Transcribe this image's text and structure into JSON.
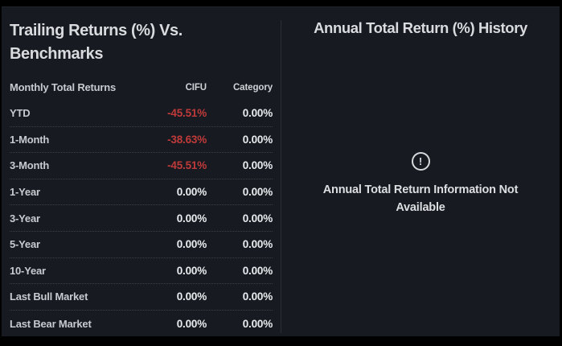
{
  "left_panel": {
    "title": "Trailing Returns (%) Vs. Benchmarks",
    "table": {
      "headers": {
        "label": "Monthly Total Returns",
        "col1": "CIFU",
        "col2": "Category"
      },
      "rows": [
        {
          "label": "YTD",
          "cifu": "-45.51%",
          "category": "0.00%"
        },
        {
          "label": "1-Month",
          "cifu": "-38.63%",
          "category": "0.00%"
        },
        {
          "label": "3-Month",
          "cifu": "-45.51%",
          "category": "0.00%"
        },
        {
          "label": "1-Year",
          "cifu": "0.00%",
          "category": "0.00%"
        },
        {
          "label": "3-Year",
          "cifu": "0.00%",
          "category": "0.00%"
        },
        {
          "label": "5-Year",
          "cifu": "0.00%",
          "category": "0.00%"
        },
        {
          "label": "10-Year",
          "cifu": "0.00%",
          "category": "0.00%"
        },
        {
          "label": "Last Bull Market",
          "cifu": "0.00%",
          "category": "0.00%"
        },
        {
          "label": "Last Bear Market",
          "cifu": "0.00%",
          "category": "0.00%"
        }
      ]
    }
  },
  "right_panel": {
    "title": "Annual Total Return (%) History",
    "empty_state": {
      "icon": "alert-circle-icon",
      "icon_glyph": "!",
      "message": "Annual Total Return Information Not Available"
    }
  },
  "colors": {
    "background": "#171b21",
    "frame": "#000000",
    "negative_value": "#c03a3a",
    "value_text": "#e9ebee",
    "divider": "#2a2e35"
  }
}
